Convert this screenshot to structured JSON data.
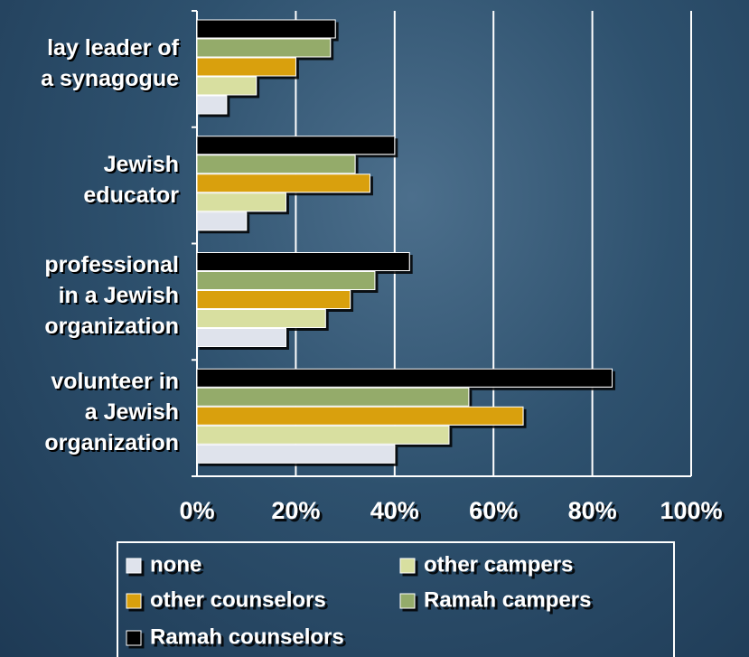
{
  "chart_data": {
    "type": "bar",
    "orientation": "horizontal",
    "categories": [
      "lay leader of\na synagogue",
      "Jewish\neducator",
      "professional\nin a Jewish\norganization",
      "volunteer in\na Jewish\norganization"
    ],
    "series": [
      {
        "name": "none",
        "color": "#dfe3ec",
        "values": [
          6,
          10,
          18,
          40
        ]
      },
      {
        "name": "other campers",
        "color": "#d8dfa0",
        "values": [
          12,
          18,
          26,
          51
        ]
      },
      {
        "name": "other counselors",
        "color": "#d9a00a",
        "values": [
          20,
          35,
          31,
          66
        ]
      },
      {
        "name": "Ramah campers",
        "color": "#94ab6a",
        "values": [
          27,
          32,
          36,
          55
        ]
      },
      {
        "name": "Ramah counselors",
        "color": "#000000",
        "values": [
          28,
          40,
          43,
          84
        ]
      }
    ],
    "xlim": [
      0,
      100
    ],
    "xticks": [
      {
        "value": 0,
        "label": "0%"
      },
      {
        "value": 20,
        "label": "20%"
      },
      {
        "value": 40,
        "label": "40%"
      },
      {
        "value": 60,
        "label": "60%"
      },
      {
        "value": 80,
        "label": "80%"
      },
      {
        "value": 100,
        "label": "100%"
      }
    ],
    "grid": true
  }
}
